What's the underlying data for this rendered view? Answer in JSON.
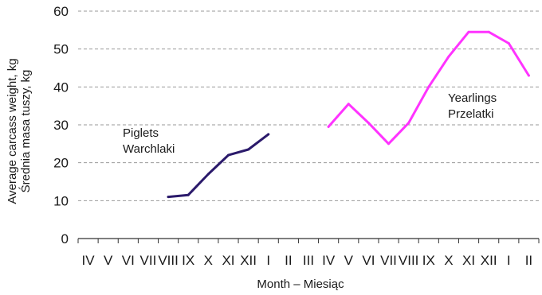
{
  "chart_data": {
    "type": "line",
    "xlabel": "Month – Miesiąc",
    "ylabel": [
      "Average carcass weight, kg",
      "Średnia masa tuszy, kg"
    ],
    "ylim": [
      0,
      60
    ],
    "yticks": [
      0,
      10,
      20,
      30,
      40,
      50,
      60
    ],
    "grid": "horizontal",
    "categories": [
      "IV",
      "V",
      "VI",
      "VII",
      "VIII",
      "IX",
      "X",
      "XI",
      "XII",
      "I",
      "II",
      "III",
      "IV",
      "V",
      "VI",
      "VII",
      "VIII",
      "IX",
      "X",
      "XI",
      "XII",
      "I",
      "II"
    ],
    "series": [
      {
        "name": "Piglets",
        "color": "#2b1a6b",
        "values": [
          null,
          null,
          null,
          null,
          11,
          11.5,
          17,
          22,
          23.5,
          27.5,
          null,
          null,
          null,
          null,
          null,
          null,
          null,
          null,
          null,
          null,
          null,
          null,
          null
        ]
      },
      {
        "name": "Yearlings",
        "color": "#ff33ff",
        "values": [
          null,
          null,
          null,
          null,
          null,
          null,
          null,
          null,
          null,
          null,
          null,
          null,
          29.5,
          35.5,
          30.5,
          25,
          30.5,
          40,
          48,
          54.5,
          54.5,
          51.5,
          43
        ]
      }
    ],
    "annotations": [
      {
        "lines": [
          "Piglets",
          "Warchlaki"
        ]
      },
      {
        "lines": [
          "Yearlings",
          "Przelatki"
        ]
      }
    ]
  }
}
